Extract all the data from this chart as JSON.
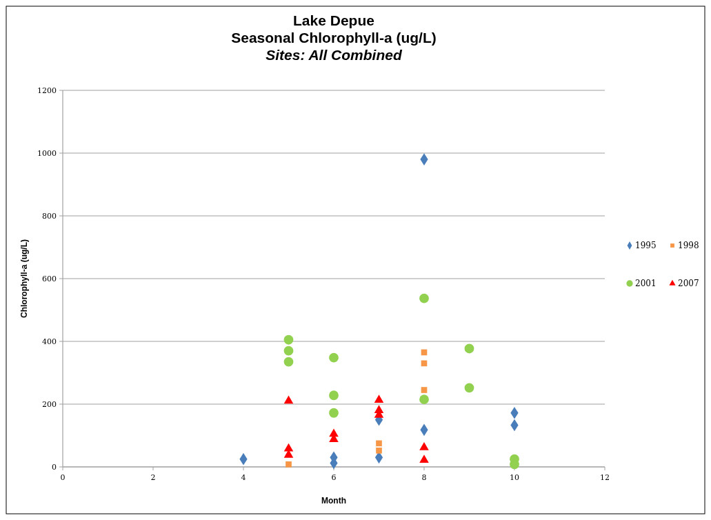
{
  "chart_data": {
    "type": "scatter",
    "title": "Lake Depue\nSeasonal Chlorophyll-a (ug/L)",
    "subtitle": "Sites: All Combined",
    "xlabel": "Month",
    "ylabel": "Chlorophyll-a (ug/L)",
    "xlim": [
      0,
      12
    ],
    "xticks": [
      0,
      2,
      4,
      6,
      8,
      10,
      12
    ],
    "ylim": [
      0,
      1200
    ],
    "yticks": [
      0,
      200,
      400,
      600,
      800,
      1000,
      1200
    ],
    "grid": "y",
    "legend": "right",
    "series": [
      {
        "name": "1995",
        "color": "#4a7ebb",
        "marker": "diamond",
        "x": [
          4,
          6,
          6,
          7,
          7,
          8,
          8,
          10,
          10
        ],
        "values": [
          25,
          30,
          12,
          150,
          30,
          980,
          118,
          172,
          133
        ]
      },
      {
        "name": "1998",
        "color": "#f79646",
        "marker": "square",
        "x": [
          5,
          7,
          7,
          8,
          8,
          8
        ],
        "values": [
          8,
          75,
          52,
          365,
          330,
          245
        ]
      },
      {
        "name": "2001",
        "color": "#92d050",
        "marker": "circle",
        "x": [
          5,
          5,
          5,
          6,
          6,
          6,
          8,
          8,
          9,
          9,
          10,
          10
        ],
        "values": [
          405,
          370,
          335,
          348,
          228,
          172,
          537,
          215,
          377,
          252,
          25,
          8
        ]
      },
      {
        "name": "2007",
        "color": "#ff0000",
        "marker": "triangle",
        "x": [
          5,
          5,
          5,
          6,
          6,
          7,
          7,
          7,
          8,
          8
        ],
        "values": [
          210,
          58,
          38,
          105,
          88,
          213,
          180,
          165,
          62,
          22
        ]
      }
    ]
  }
}
